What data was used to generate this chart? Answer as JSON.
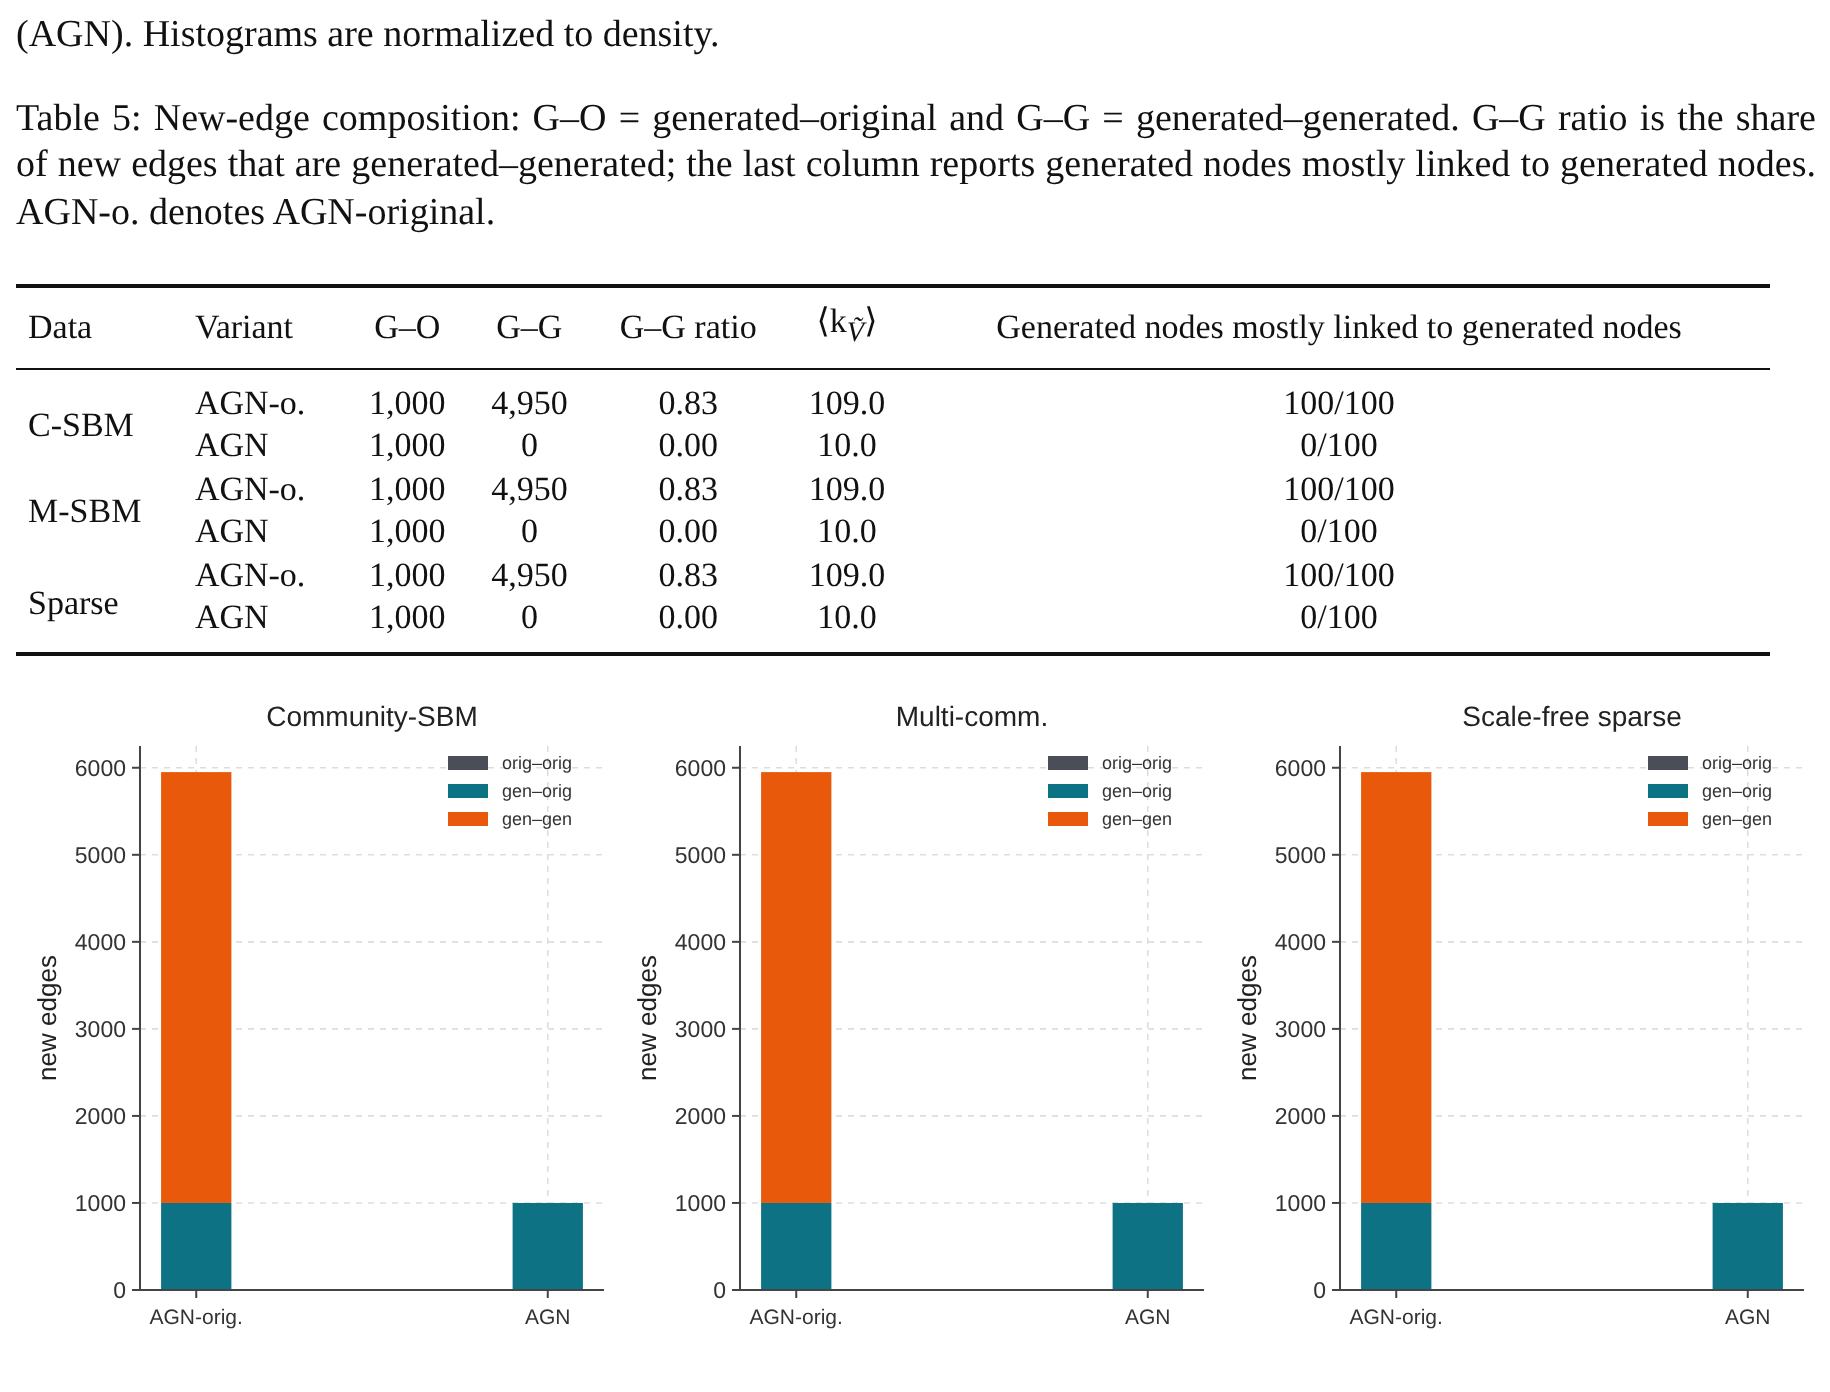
{
  "chart_data": [
    {
      "type": "other",
      "annotations": [
        "(AGN). Histograms are normalized to density.",
        "Table 5: New-edge composition: G–O = generated–original and G–G = generated–generated. G–G ratio is the share of new edges that are generated–generated; the last column reports generated nodes mostly linked to generated nodes. AGN-o. denotes AGN-original."
      ]
    },
    {
      "type": "other",
      "categories": [
        "Data",
        "Variant",
        "G–O",
        "G–G",
        "G–G ratio",
        "⟨k$_{Ṽ}$⟩",
        "Generated nodes mostly linked to generated nodes"
      ],
      "cell_labels": [
        [
          "C-SBM",
          "AGN-o.",
          "1,000",
          "4,950",
          "0.83",
          "109.0",
          "100/100"
        ],
        [
          null,
          "AGN",
          "1,000",
          "0",
          "0.00",
          "10.0",
          "0/100"
        ],
        [
          "M-SBM",
          "AGN-o.",
          "1,000",
          "4,950",
          "0.83",
          "109.0",
          "100/100"
        ],
        [
          null,
          "AGN",
          "1,000",
          "0",
          "0.00",
          "10.0",
          "0/100"
        ],
        [
          "Sparse",
          "AGN-o.",
          "1,000",
          "4,950",
          "0.83",
          "109.0",
          "100/100"
        ],
        [
          null,
          "AGN",
          "1,000",
          "0",
          "0.00",
          "10.0",
          "0/100"
        ]
      ]
    },
    {
      "type": "bar",
      "title": "Community-SBM",
      "ylabel": "new edges",
      "categories": [
        "AGN-orig.",
        "AGN"
      ],
      "stacked": true,
      "ylim": [
        0,
        6250
      ],
      "yticks": [
        0,
        1000,
        2000,
        3000,
        4000,
        5000,
        6000
      ],
      "grid": true,
      "legend": "top right",
      "series": [
        {
          "name": "orig–orig",
          "color": "#4a4f57",
          "values": [
            0,
            0
          ]
        },
        {
          "name": "gen–orig",
          "color": "#0e7285",
          "values": [
            1000,
            1000
          ]
        },
        {
          "name": "gen–gen",
          "color": "#e8590c",
          "values": [
            4950,
            0
          ]
        }
      ]
    },
    {
      "type": "bar",
      "title": "Multi-comm.",
      "ylabel": "new edges",
      "categories": [
        "AGN-orig.",
        "AGN"
      ],
      "stacked": true,
      "ylim": [
        0,
        6250
      ],
      "yticks": [
        0,
        1000,
        2000,
        3000,
        4000,
        5000,
        6000
      ],
      "grid": true,
      "legend": "top right",
      "series": [
        {
          "name": "orig–orig",
          "color": "#4a4f57",
          "values": [
            0,
            0
          ]
        },
        {
          "name": "gen–orig",
          "color": "#0e7285",
          "values": [
            1000,
            1000
          ]
        },
        {
          "name": "gen–gen",
          "color": "#e8590c",
          "values": [
            4950,
            0
          ]
        }
      ]
    },
    {
      "type": "bar",
      "title": "Scale-free sparse",
      "ylabel": "new edges",
      "categories": [
        "AGN-orig.",
        "AGN"
      ],
      "stacked": true,
      "ylim": [
        0,
        6250
      ],
      "yticks": [
        0,
        1000,
        2000,
        3000,
        4000,
        5000,
        6000
      ],
      "grid": true,
      "legend": "top right",
      "series": [
        {
          "name": "orig–orig",
          "color": "#4a4f57",
          "values": [
            0,
            0
          ]
        },
        {
          "name": "gen–orig",
          "color": "#0e7285",
          "values": [
            1000,
            1000
          ]
        },
        {
          "name": "gen–gen",
          "color": "#e8590c",
          "values": [
            4950,
            0
          ]
        }
      ]
    }
  ]
}
